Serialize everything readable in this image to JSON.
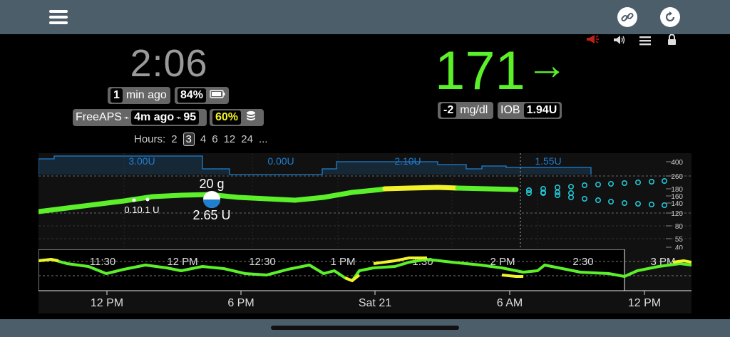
{
  "topbar": {
    "menu_icon": "hamburger-menu-icon",
    "link_icon": "link-icon",
    "refresh_icon": "refresh-icon"
  },
  "status_icons": {
    "alarm": "megaphone-icon",
    "sound": "speaker-icon",
    "menu": "list-icon",
    "lock": "lock-icon"
  },
  "clock": {
    "time": "2:06"
  },
  "reading_age": {
    "value": "1",
    "unit": "min ago"
  },
  "battery": {
    "value": "84%"
  },
  "loop": {
    "name": "FreeAPS",
    "age": "4m ago",
    "value": "95"
  },
  "pump": {
    "reservoir": "60%"
  },
  "bg": {
    "value": "171",
    "arrow": "→",
    "delta": "-2",
    "unit": "mg/dl"
  },
  "iob": {
    "label": "IOB",
    "value": "1.94U"
  },
  "hours": {
    "label": "Hours:",
    "options": [
      "2",
      "3",
      "4",
      "6",
      "12",
      "24",
      "..."
    ],
    "selected": "3"
  },
  "chart_data": {
    "type": "line",
    "basal_labels": [
      "3.00U",
      "0.00U",
      "2.10U",
      "1.55U"
    ],
    "y_ticks": [
      400,
      260,
      180,
      160,
      140,
      120,
      80,
      55,
      40
    ],
    "treatments": {
      "carbs": "20 g",
      "bolus": "2.65 U",
      "small_bolus": "0.10.1 U"
    },
    "main_x_ticks": [
      "11:30",
      "12 PM",
      "12:30",
      "1 PM",
      "1:30",
      "2 PM",
      "2:30",
      "3 PM"
    ],
    "overview_x_ticks": [
      "12 PM",
      "6 PM",
      "Sat 21",
      "6 AM",
      "12 PM"
    ],
    "colors": {
      "in_range": "#5cf02a",
      "high": "#f2f22a",
      "basal": "#1f7fd0",
      "forecast": "#21c7d6"
    }
  }
}
